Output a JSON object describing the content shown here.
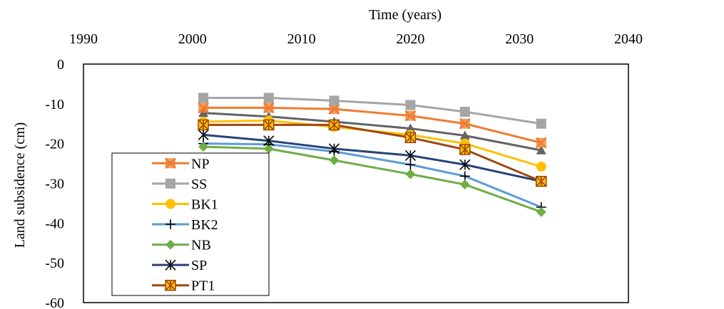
{
  "chart_data": {
    "type": "line",
    "xlabel": "Time (years)",
    "ylabel": "Land subsidence (cm)",
    "xlim": [
      1990,
      2040
    ],
    "ylim": [
      -60,
      0
    ],
    "x_ticks": [
      "1990",
      "2000",
      "2010",
      "2020",
      "2030",
      "2040"
    ],
    "y_ticks": [
      "0",
      "-10",
      "-20",
      "-30",
      "-40",
      "-50",
      "-60"
    ],
    "x_axis_position": "top",
    "grid": false,
    "legend_position": "bottom-left",
    "x": [
      2001,
      2007,
      2013,
      2020,
      2025,
      2032
    ],
    "series": [
      {
        "name": "NP",
        "color": "#ED7D31",
        "marker": "square-x",
        "values": [
          -11.0,
          -11.0,
          -11.3,
          -13.0,
          -15.0,
          -19.8
        ]
      },
      {
        "name": "SS",
        "color": "#A5A5A5",
        "marker": "square",
        "values": [
          -8.5,
          -8.5,
          -9.2,
          -10.3,
          -12.0,
          -15.0
        ]
      },
      {
        "name": "BK1",
        "color": "#FFC000",
        "marker": "circle",
        "values": [
          -14.5,
          -14.2,
          -15.8,
          -17.8,
          -20.0,
          -25.8
        ]
      },
      {
        "name": "BK2",
        "color": "#5B9BD5",
        "marker": "plus",
        "values": [
          -20.0,
          -20.2,
          -22.0,
          -25.3,
          -28.2,
          -36.0
        ]
      },
      {
        "name": "NB",
        "color": "#70AD47",
        "marker": "diamond",
        "values": [
          -20.8,
          -21.3,
          -24.2,
          -27.7,
          -30.3,
          -37.2
        ]
      },
      {
        "name": "SP",
        "color": "#264478",
        "marker": "asterisk",
        "values": [
          -17.8,
          -19.3,
          -21.3,
          -23.0,
          -25.3,
          -29.5
        ]
      },
      {
        "name": "PT1",
        "color": "#9E480E",
        "marker": "square-asterisk",
        "values": [
          -15.3,
          -15.3,
          -15.3,
          -18.5,
          -21.5,
          -29.5
        ]
      }
    ],
    "extra_series_color": "#636363",
    "extra_series_marker": "triangle",
    "extra_series_values": [
      -12.3,
      -13.2,
      -14.5,
      -16.2,
      -18.0,
      -21.7
    ]
  }
}
